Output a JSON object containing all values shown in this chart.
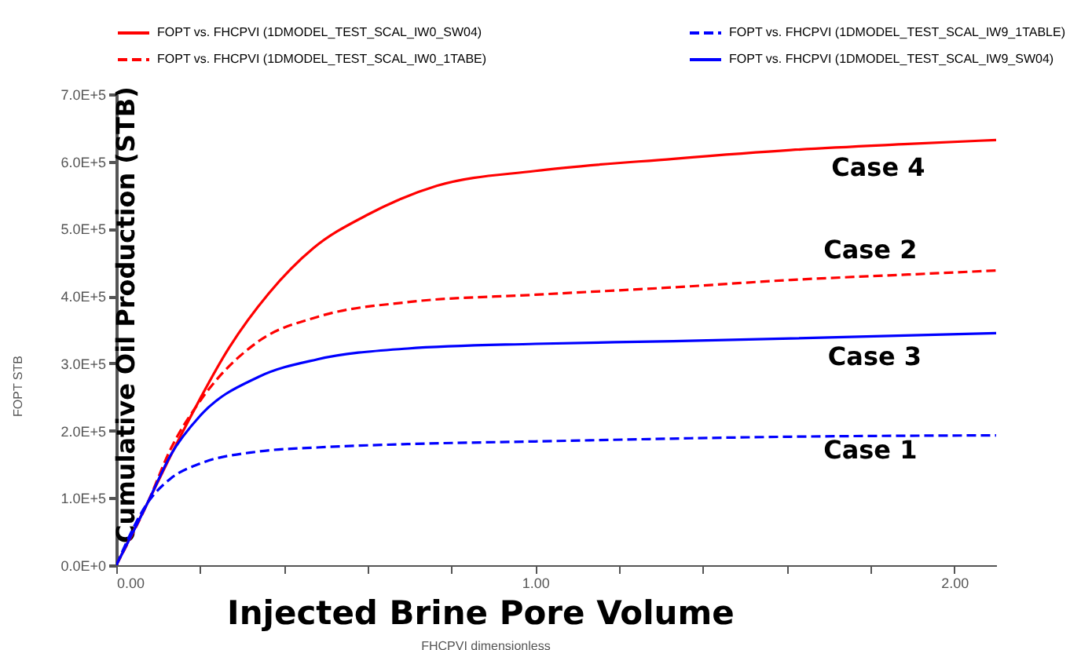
{
  "chart_data": {
    "type": "line",
    "xlabel": "Injected Brine Pore Volume",
    "ylabel": "Cumulative Oil Production (STB)",
    "legend": "top",
    "xlim": [
      0,
      2.1
    ],
    "xticks": [
      {
        "value": 0,
        "label": "0.00"
      },
      {
        "value": 0.2,
        "label": null
      },
      {
        "value": 0.4,
        "label": null
      },
      {
        "value": 0.6,
        "label": null
      },
      {
        "value": 0.8,
        "label": null
      },
      {
        "value": 1,
        "label": "1.00"
      },
      {
        "value": 1.2,
        "label": null
      },
      {
        "value": 1.4,
        "label": null
      },
      {
        "value": 1.6,
        "label": null
      },
      {
        "value": 1.8,
        "label": null
      },
      {
        "value": 2,
        "label": "2.00"
      }
    ],
    "ylim": [
      0,
      700000
    ],
    "yticks": [
      {
        "value": 0,
        "label": "0.0E+0"
      },
      {
        "value": 100000,
        "label": "1.0E+5"
      },
      {
        "value": 200000,
        "label": "2.0E+5"
      },
      {
        "value": 300000,
        "label": "3.0E+5"
      },
      {
        "value": 400000,
        "label": "4.0E+5"
      },
      {
        "value": 500000,
        "label": "5.0E+5"
      },
      {
        "value": 600000,
        "label": "6.0E+5"
      },
      {
        "value": 700000,
        "label": "7.0E+5"
      }
    ],
    "series": [
      {
        "name": "FOPT  vs.  FHCPVI (1DMODEL_TEST_SCAL_IW0_SW04)",
        "color": "#ff0000",
        "line_style": "solid",
        "x": [
          0,
          0.075,
          0.16,
          0.27,
          0.364,
          0.47,
          0.597,
          0.766,
          1.0,
          1.33,
          1.61,
          1.89,
          2.1
        ],
        "values": [
          0,
          93000,
          200000,
          324000,
          404000,
          471000,
          520000,
          564000,
          586000,
          604000,
          617000,
          626000,
          632000
        ]
      },
      {
        "name": "FOPT  vs.  FHCPVI (1DMODEL_TEST_SCAL_IW9_1TABLE)",
        "color": "#0000ff",
        "line_style": "dashed",
        "x": [
          0,
          0.075,
          0.13,
          0.2,
          0.34,
          0.48,
          0.695,
          1.0,
          1.61,
          2.1
        ],
        "values": [
          0,
          93000,
          129000,
          151000,
          169000,
          175000,
          180000,
          184000,
          191000,
          193000
        ]
      },
      {
        "name": "FOPT  vs.  FHCPVI (1DMODEL_TEST_SCAL_IW0_1TABE)",
        "color": "#ff0000",
        "line_style": "dashed",
        "x": [
          0,
          0.075,
          0.13,
          0.2,
          0.34,
          0.48,
          0.695,
          1.0,
          1.33,
          1.61,
          1.89,
          2.1
        ],
        "values": [
          0,
          93000,
          173000,
          244000,
          333000,
          369000,
          391000,
          402000,
          413000,
          424000,
          432000,
          438000
        ]
      },
      {
        "name": "FOPT  vs.  FHCPVI (1DMODEL_TEST_SCAL_IW9_SW04)",
        "color": "#0000ff",
        "line_style": "solid",
        "x": [
          0,
          0.075,
          0.13,
          0.2,
          0.34,
          0.48,
          0.695,
          1.0,
          1.33,
          1.61,
          2.1
        ],
        "values": [
          0,
          93000,
          164000,
          222000,
          280000,
          306000,
          322000,
          329000,
          333000,
          337000,
          345000
        ]
      }
    ],
    "annotations": [
      "Case 4",
      "Case 2",
      "Case 3",
      "Case 1",
      "FOPT   STB",
      "FHCPVI   dimensionless"
    ]
  }
}
